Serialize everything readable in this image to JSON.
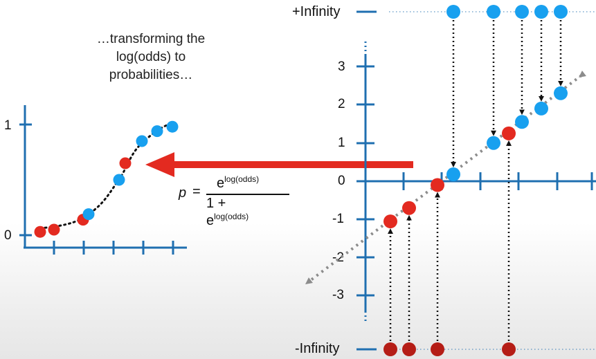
{
  "caption": "…transforming the log(odds) to probabilities…",
  "left_plot": {
    "y_tick_labels": [
      "1",
      "0"
    ]
  },
  "right_plot": {
    "y_tick_labels": [
      "3",
      "2",
      "1",
      "0",
      "-1",
      "-2",
      "-3"
    ],
    "plus_infinity_label": "+Infinity",
    "minus_infinity_label": "-Infinity"
  },
  "formula": {
    "lhs": "p",
    "equals": "=",
    "numerator_base": "e",
    "numerator_exponent": "log(odds)",
    "denominator_prefix": "1 + e",
    "denominator_exponent": "log(odds)"
  },
  "colors": {
    "axis": "#1f6fb0",
    "blue_point": "#18a0ef",
    "red_point": "#e32a20",
    "dark_red_point": "#b51d16",
    "arrow": "#e32a20",
    "dotted": "#111111",
    "fit_line": "#8c8c8c"
  },
  "left_points": [
    {
      "p": 0.03,
      "color": "red"
    },
    {
      "p": 0.05,
      "color": "red"
    },
    {
      "p": 0.14,
      "color": "red"
    },
    {
      "p": 0.19,
      "color": "blue"
    },
    {
      "p": 0.5,
      "color": "blue"
    },
    {
      "p": 0.65,
      "color": "red"
    },
    {
      "p": 0.85,
      "color": "blue"
    },
    {
      "p": 0.94,
      "color": "blue"
    },
    {
      "p": 0.98,
      "color": "blue"
    }
  ],
  "right_points": [
    {
      "log_odds": -1.05,
      "color": "red",
      "source": "minus"
    },
    {
      "log_odds": -0.7,
      "color": "red",
      "source": "minus"
    },
    {
      "log_odds": -0.1,
      "color": "red",
      "source": "minus"
    },
    {
      "log_odds": 0.18,
      "color": "blue",
      "source": "plus"
    },
    {
      "log_odds": 1.0,
      "color": "blue",
      "source": "plus"
    },
    {
      "log_odds": 1.25,
      "color": "red",
      "source": "minus"
    },
    {
      "log_odds": 1.55,
      "color": "blue",
      "source": "plus"
    },
    {
      "log_odds": 1.9,
      "color": "blue",
      "source": "plus"
    },
    {
      "log_odds": 2.3,
      "color": "blue",
      "source": "plus"
    }
  ]
}
